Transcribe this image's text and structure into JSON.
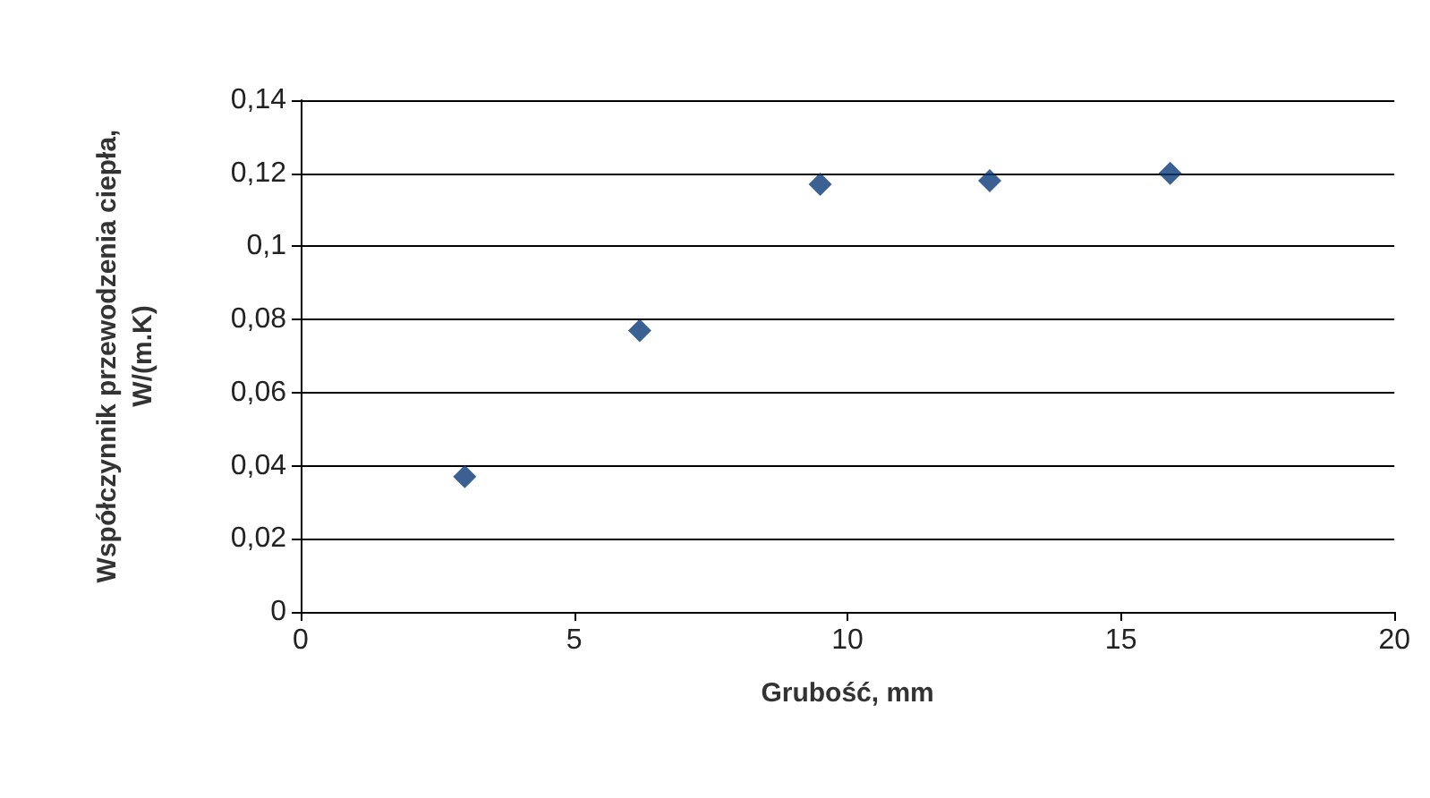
{
  "chart_data": {
    "type": "scatter",
    "xlabel": "Grubość, mm",
    "ylabel": "Współczynnik przewodzenia ciepła,\nW/(m.K)",
    "x": [
      3,
      6.2,
      9.5,
      12.6,
      15.9
    ],
    "values": [
      0.037,
      0.077,
      0.117,
      0.118,
      0.12
    ],
    "color": "#0a3a78",
    "marker": "diamond",
    "xlim": [
      0,
      20
    ],
    "xticks": [
      0,
      5,
      10,
      15,
      20
    ],
    "ylim": [
      0,
      0.14
    ],
    "yticks": [
      0,
      {
        "value": 0.02,
        "label": "0,02"
      },
      {
        "value": 0.04,
        "label": "0,04"
      },
      {
        "value": 0.06,
        "label": "0,06"
      },
      {
        "value": 0.08,
        "label": "0,08"
      },
      {
        "value": 0.1,
        "label": "0,1"
      },
      {
        "value": 0.12,
        "label": "0,12"
      },
      {
        "value": 0.14,
        "label": "0,14"
      }
    ],
    "grid": "y"
  }
}
